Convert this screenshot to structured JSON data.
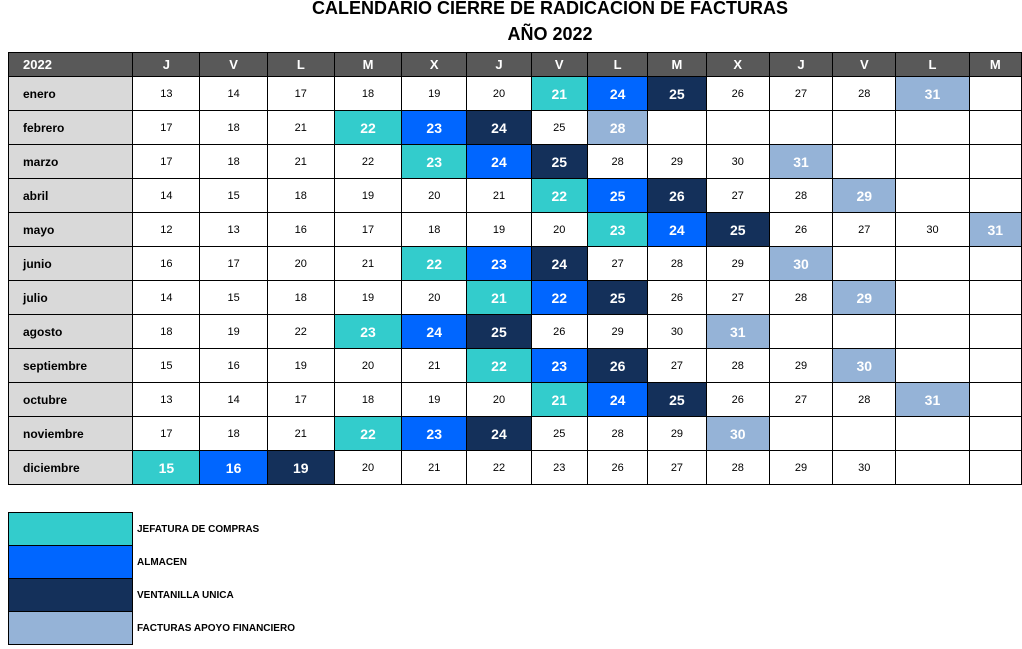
{
  "title": "CALENDARIO CIERRE DE RADICACION DE FACTURAS",
  "subtitle": "AÑO 2022",
  "colors": {
    "header_bg": "#595959",
    "month_bg": "#d9d9d9",
    "jefatura": "#33cccc",
    "almacen": "#0066ff",
    "ventanilla": "#14305a",
    "facturas": "#95b3d7"
  },
  "header": {
    "year": "2022",
    "days": [
      "J",
      "V",
      "L",
      "M",
      "X",
      "J",
      "V",
      "L",
      "M",
      "X",
      "J",
      "V",
      "L",
      "M"
    ]
  },
  "rows": [
    {
      "month": "enero",
      "cells": [
        {
          "v": "13"
        },
        {
          "v": "14"
        },
        {
          "v": "17"
        },
        {
          "v": "18"
        },
        {
          "v": "19"
        },
        {
          "v": "20"
        },
        {
          "v": "21",
          "c": "c1"
        },
        {
          "v": "24",
          "c": "c2"
        },
        {
          "v": "25",
          "c": "c3"
        },
        {
          "v": "26"
        },
        {
          "v": "27"
        },
        {
          "v": "28"
        },
        {
          "v": "31",
          "c": "c4"
        },
        {
          "v": ""
        }
      ]
    },
    {
      "month": "febrero",
      "cells": [
        {
          "v": "17"
        },
        {
          "v": "18"
        },
        {
          "v": "21"
        },
        {
          "v": "22",
          "c": "c1"
        },
        {
          "v": "23",
          "c": "c2"
        },
        {
          "v": "24",
          "c": "c3"
        },
        {
          "v": "25"
        },
        {
          "v": "28",
          "c": "c4"
        },
        {
          "v": ""
        },
        {
          "v": ""
        },
        {
          "v": ""
        },
        {
          "v": ""
        },
        {
          "v": ""
        },
        {
          "v": ""
        }
      ]
    },
    {
      "month": "marzo",
      "cells": [
        {
          "v": "17"
        },
        {
          "v": "18"
        },
        {
          "v": "21"
        },
        {
          "v": "22"
        },
        {
          "v": "23",
          "c": "c1"
        },
        {
          "v": "24",
          "c": "c2"
        },
        {
          "v": "25",
          "c": "c3"
        },
        {
          "v": "28"
        },
        {
          "v": "29"
        },
        {
          "v": "30"
        },
        {
          "v": "31",
          "c": "c4"
        },
        {
          "v": ""
        },
        {
          "v": ""
        },
        {
          "v": ""
        }
      ]
    },
    {
      "month": "abril",
      "cells": [
        {
          "v": "14"
        },
        {
          "v": "15"
        },
        {
          "v": "18"
        },
        {
          "v": "19"
        },
        {
          "v": "20"
        },
        {
          "v": "21"
        },
        {
          "v": "22",
          "c": "c1"
        },
        {
          "v": "25",
          "c": "c2"
        },
        {
          "v": "26",
          "c": "c3"
        },
        {
          "v": "27"
        },
        {
          "v": "28"
        },
        {
          "v": "29",
          "c": "c4"
        },
        {
          "v": ""
        },
        {
          "v": ""
        }
      ]
    },
    {
      "month": "mayo",
      "cells": [
        {
          "v": "12"
        },
        {
          "v": "13"
        },
        {
          "v": "16"
        },
        {
          "v": "17"
        },
        {
          "v": "18"
        },
        {
          "v": "19"
        },
        {
          "v": "20"
        },
        {
          "v": "23",
          "c": "c1"
        },
        {
          "v": "24",
          "c": "c2"
        },
        {
          "v": "25",
          "c": "c3"
        },
        {
          "v": "26"
        },
        {
          "v": "27"
        },
        {
          "v": "30"
        },
        {
          "v": "31",
          "c": "c4"
        }
      ]
    },
    {
      "month": "junio",
      "cells": [
        {
          "v": "16"
        },
        {
          "v": "17"
        },
        {
          "v": "20"
        },
        {
          "v": "21"
        },
        {
          "v": "22",
          "c": "c1"
        },
        {
          "v": "23",
          "c": "c2"
        },
        {
          "v": "24",
          "c": "c3"
        },
        {
          "v": "27"
        },
        {
          "v": "28"
        },
        {
          "v": "29"
        },
        {
          "v": "30",
          "c": "c4"
        },
        {
          "v": ""
        },
        {
          "v": ""
        },
        {
          "v": ""
        }
      ]
    },
    {
      "month": "julio",
      "cells": [
        {
          "v": "14"
        },
        {
          "v": "15"
        },
        {
          "v": "18"
        },
        {
          "v": "19"
        },
        {
          "v": "20"
        },
        {
          "v": "21",
          "c": "c1"
        },
        {
          "v": "22",
          "c": "c2"
        },
        {
          "v": "25",
          "c": "c3"
        },
        {
          "v": "26"
        },
        {
          "v": "27"
        },
        {
          "v": "28"
        },
        {
          "v": "29",
          "c": "c4"
        },
        {
          "v": ""
        },
        {
          "v": ""
        }
      ]
    },
    {
      "month": "agosto",
      "cells": [
        {
          "v": "18"
        },
        {
          "v": "19"
        },
        {
          "v": "22"
        },
        {
          "v": "23",
          "c": "c1"
        },
        {
          "v": "24",
          "c": "c2"
        },
        {
          "v": "25",
          "c": "c3"
        },
        {
          "v": "26"
        },
        {
          "v": "29"
        },
        {
          "v": "30"
        },
        {
          "v": "31",
          "c": "c4"
        },
        {
          "v": ""
        },
        {
          "v": ""
        },
        {
          "v": ""
        },
        {
          "v": ""
        }
      ]
    },
    {
      "month": "septiembre",
      "cells": [
        {
          "v": "15"
        },
        {
          "v": "16"
        },
        {
          "v": "19"
        },
        {
          "v": "20"
        },
        {
          "v": "21"
        },
        {
          "v": "22",
          "c": "c1"
        },
        {
          "v": "23",
          "c": "c2"
        },
        {
          "v": "26",
          "c": "c3"
        },
        {
          "v": "27"
        },
        {
          "v": "28"
        },
        {
          "v": "29"
        },
        {
          "v": "30",
          "c": "c4"
        },
        {
          "v": ""
        },
        {
          "v": ""
        }
      ]
    },
    {
      "month": "octubre",
      "cells": [
        {
          "v": "13"
        },
        {
          "v": "14"
        },
        {
          "v": "17"
        },
        {
          "v": "18"
        },
        {
          "v": "19"
        },
        {
          "v": "20"
        },
        {
          "v": "21",
          "c": "c1"
        },
        {
          "v": "24",
          "c": "c2"
        },
        {
          "v": "25",
          "c": "c3"
        },
        {
          "v": "26"
        },
        {
          "v": "27"
        },
        {
          "v": "28"
        },
        {
          "v": "31",
          "c": "c4"
        },
        {
          "v": ""
        }
      ]
    },
    {
      "month": "noviembre",
      "cells": [
        {
          "v": "17"
        },
        {
          "v": "18"
        },
        {
          "v": "21"
        },
        {
          "v": "22",
          "c": "c1"
        },
        {
          "v": "23",
          "c": "c2"
        },
        {
          "v": "24",
          "c": "c3"
        },
        {
          "v": "25"
        },
        {
          "v": "28"
        },
        {
          "v": "29"
        },
        {
          "v": "30",
          "c": "c4"
        },
        {
          "v": ""
        },
        {
          "v": ""
        },
        {
          "v": ""
        },
        {
          "v": ""
        }
      ]
    },
    {
      "month": "diciembre",
      "cells": [
        {
          "v": "15",
          "c": "c1"
        },
        {
          "v": "16",
          "c": "c2"
        },
        {
          "v": "19",
          "c": "c3"
        },
        {
          "v": "20"
        },
        {
          "v": "21"
        },
        {
          "v": "22"
        },
        {
          "v": "23"
        },
        {
          "v": "26"
        },
        {
          "v": "27"
        },
        {
          "v": "28"
        },
        {
          "v": "29"
        },
        {
          "v": "30"
        },
        {
          "v": ""
        },
        {
          "v": ""
        }
      ]
    }
  ],
  "legend": [
    {
      "label": "JEFATURA DE COMPRAS",
      "c": "c1"
    },
    {
      "label": "ALMACEN",
      "c": "c2"
    },
    {
      "label": "VENTANILLA UNICA",
      "c": "c3"
    },
    {
      "label": "FACTURAS APOYO FINANCIERO",
      "c": "c4"
    }
  ]
}
